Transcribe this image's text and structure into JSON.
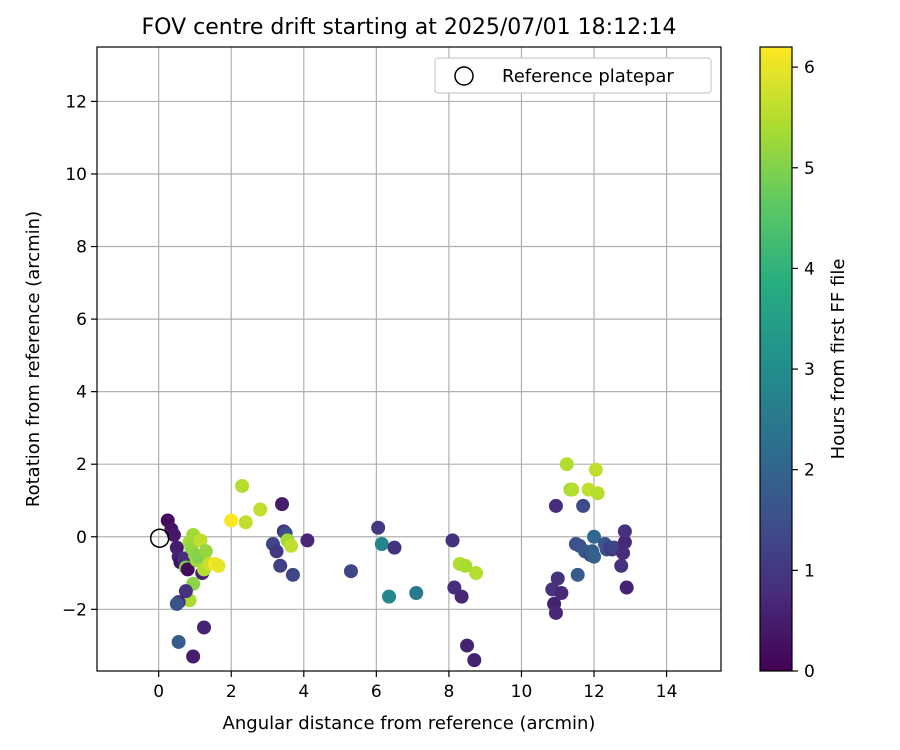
{
  "chart_data": {
    "type": "scatter",
    "title": "FOV centre drift starting at 2025/07/01 18:12:14",
    "xlabel": "Angular distance from reference (arcmin)",
    "ylabel": "Rotation from reference (arcmin)",
    "xlim": [
      -1.7,
      15.5
    ],
    "ylim": [
      -3.7,
      13.5
    ],
    "xticks": [
      "0",
      "2",
      "4",
      "6",
      "8",
      "10",
      "12",
      "14"
    ],
    "yticks": [
      "−2",
      "0",
      "2",
      "4",
      "6",
      "8",
      "10",
      "12"
    ],
    "xtick_values": [
      0,
      2,
      4,
      6,
      8,
      10,
      12,
      14
    ],
    "ytick_values": [
      -2,
      0,
      2,
      4,
      6,
      8,
      10,
      12
    ],
    "grid": true,
    "legend": {
      "position": "top-right",
      "entries": [
        "Reference platepar"
      ]
    },
    "reference_point": {
      "x": 0,
      "y": 0,
      "label": "Reference platepar"
    },
    "colorbar": {
      "label": "Hours from first FF file",
      "min": 0,
      "max": 6.2,
      "ticks": [
        "0",
        "1",
        "2",
        "3",
        "4",
        "5",
        "6"
      ],
      "tick_values": [
        0,
        1,
        2,
        3,
        4,
        5,
        6
      ],
      "colormap": "viridis"
    },
    "points": [
      {
        "x": 0.25,
        "y": 0.45,
        "h": 0.15
      },
      {
        "x": 0.35,
        "y": 0.2,
        "h": 0.3
      },
      {
        "x": 0.42,
        "y": 0.05,
        "h": 0.4
      },
      {
        "x": 0.5,
        "y": -0.3,
        "h": 0.5
      },
      {
        "x": 0.55,
        "y": -0.55,
        "h": 0.6
      },
      {
        "x": 0.6,
        "y": -0.7,
        "h": 0.3
      },
      {
        "x": 0.7,
        "y": -0.6,
        "h": 0.8
      },
      {
        "x": 0.75,
        "y": -0.85,
        "h": 4.9
      },
      {
        "x": 0.8,
        "y": -0.9,
        "h": 0.2
      },
      {
        "x": 0.85,
        "y": -0.15,
        "h": 5.4
      },
      {
        "x": 0.9,
        "y": -0.3,
        "h": 5.2
      },
      {
        "x": 0.95,
        "y": 0.05,
        "h": 5.3
      },
      {
        "x": 1.0,
        "y": -0.5,
        "h": 5.1
      },
      {
        "x": 1.05,
        "y": -0.65,
        "h": 5.3
      },
      {
        "x": 1.1,
        "y": -0.55,
        "h": 5.0
      },
      {
        "x": 1.15,
        "y": -0.1,
        "h": 5.6
      },
      {
        "x": 1.2,
        "y": -1.0,
        "h": 0.6
      },
      {
        "x": 1.25,
        "y": -0.9,
        "h": 5.5
      },
      {
        "x": 1.3,
        "y": -0.4,
        "h": 5.2
      },
      {
        "x": 1.4,
        "y": -0.75,
        "h": 5.7
      },
      {
        "x": 1.55,
        "y": -0.75,
        "h": 6.1
      },
      {
        "x": 1.65,
        "y": -0.8,
        "h": 6.0
      },
      {
        "x": 0.95,
        "y": -1.3,
        "h": 5.1
      },
      {
        "x": 0.85,
        "y": -1.75,
        "h": 5.4
      },
      {
        "x": 0.75,
        "y": -1.5,
        "h": 0.9
      },
      {
        "x": 0.55,
        "y": -1.8,
        "h": 0.7
      },
      {
        "x": 0.5,
        "y": -1.85,
        "h": 1.6
      },
      {
        "x": 0.55,
        "y": -2.9,
        "h": 1.8
      },
      {
        "x": 0.95,
        "y": -3.3,
        "h": 0.5
      },
      {
        "x": 1.25,
        "y": -2.5,
        "h": 0.6
      },
      {
        "x": 2.0,
        "y": 0.45,
        "h": 6.2
      },
      {
        "x": 2.3,
        "y": 1.4,
        "h": 5.5
      },
      {
        "x": 2.4,
        "y": 0.4,
        "h": 5.6
      },
      {
        "x": 2.8,
        "y": 0.75,
        "h": 5.6
      },
      {
        "x": 3.15,
        "y": -0.2,
        "h": 1.3
      },
      {
        "x": 3.25,
        "y": -0.4,
        "h": 1.0
      },
      {
        "x": 3.35,
        "y": -0.8,
        "h": 1.2
      },
      {
        "x": 3.4,
        "y": 0.9,
        "h": 0.5
      },
      {
        "x": 3.45,
        "y": 0.15,
        "h": 0.8
      },
      {
        "x": 3.5,
        "y": 0.1,
        "h": 1.4
      },
      {
        "x": 3.55,
        "y": -0.1,
        "h": 5.3
      },
      {
        "x": 3.65,
        "y": -0.25,
        "h": 5.6
      },
      {
        "x": 3.7,
        "y": -1.05,
        "h": 1.3
      },
      {
        "x": 4.1,
        "y": -0.1,
        "h": 0.7
      },
      {
        "x": 5.3,
        "y": -0.95,
        "h": 1.3
      },
      {
        "x": 6.05,
        "y": 0.25,
        "h": 1.0
      },
      {
        "x": 6.15,
        "y": -0.2,
        "h": 2.8
      },
      {
        "x": 6.35,
        "y": -1.65,
        "h": 2.9
      },
      {
        "x": 6.5,
        "y": -0.3,
        "h": 0.9
      },
      {
        "x": 7.1,
        "y": -1.55,
        "h": 2.5
      },
      {
        "x": 8.1,
        "y": -0.1,
        "h": 0.9
      },
      {
        "x": 8.15,
        "y": -1.4,
        "h": 0.8
      },
      {
        "x": 8.3,
        "y": -0.75,
        "h": 5.5
      },
      {
        "x": 8.35,
        "y": -1.65,
        "h": 0.7
      },
      {
        "x": 8.45,
        "y": -0.8,
        "h": 5.4
      },
      {
        "x": 8.5,
        "y": -3.0,
        "h": 0.6
      },
      {
        "x": 8.7,
        "y": -3.4,
        "h": 0.6
      },
      {
        "x": 8.75,
        "y": -1.0,
        "h": 5.5
      },
      {
        "x": 10.85,
        "y": -1.45,
        "h": 0.9
      },
      {
        "x": 10.9,
        "y": -1.85,
        "h": 0.6
      },
      {
        "x": 10.95,
        "y": -2.1,
        "h": 0.7
      },
      {
        "x": 10.95,
        "y": 0.85,
        "h": 0.8
      },
      {
        "x": 11.0,
        "y": -1.15,
        "h": 0.9
      },
      {
        "x": 11.1,
        "y": -1.55,
        "h": 0.7
      },
      {
        "x": 11.25,
        "y": 2.0,
        "h": 5.5
      },
      {
        "x": 11.35,
        "y": 1.3,
        "h": 5.3
      },
      {
        "x": 11.4,
        "y": 1.3,
        "h": 5.5
      },
      {
        "x": 11.5,
        "y": -0.2,
        "h": 1.5
      },
      {
        "x": 11.55,
        "y": -1.05,
        "h": 1.8
      },
      {
        "x": 11.6,
        "y": -0.25,
        "h": 1.6
      },
      {
        "x": 11.7,
        "y": 0.85,
        "h": 1.4
      },
      {
        "x": 11.75,
        "y": -0.4,
        "h": 1.7
      },
      {
        "x": 11.85,
        "y": 1.3,
        "h": 5.6
      },
      {
        "x": 11.9,
        "y": -0.5,
        "h": 1.3
      },
      {
        "x": 11.95,
        "y": -0.4,
        "h": 1.8
      },
      {
        "x": 12.0,
        "y": 0.0,
        "h": 2.1
      },
      {
        "x": 12.0,
        "y": -0.55,
        "h": 1.9
      },
      {
        "x": 12.05,
        "y": 1.85,
        "h": 5.6
      },
      {
        "x": 12.1,
        "y": 1.2,
        "h": 5.5
      },
      {
        "x": 12.3,
        "y": -0.2,
        "h": 1.7
      },
      {
        "x": 12.35,
        "y": -0.35,
        "h": 1.5
      },
      {
        "x": 12.45,
        "y": -0.3,
        "h": 1.2
      },
      {
        "x": 12.5,
        "y": -0.35,
        "h": 1.0
      },
      {
        "x": 12.55,
        "y": -0.3,
        "h": 1.3
      },
      {
        "x": 12.75,
        "y": -0.8,
        "h": 0.9
      },
      {
        "x": 12.8,
        "y": -0.45,
        "h": 0.8
      },
      {
        "x": 12.85,
        "y": -0.15,
        "h": 0.7
      },
      {
        "x": 12.85,
        "y": 0.15,
        "h": 0.9
      },
      {
        "x": 12.9,
        "y": -1.4,
        "h": 0.6
      }
    ]
  }
}
